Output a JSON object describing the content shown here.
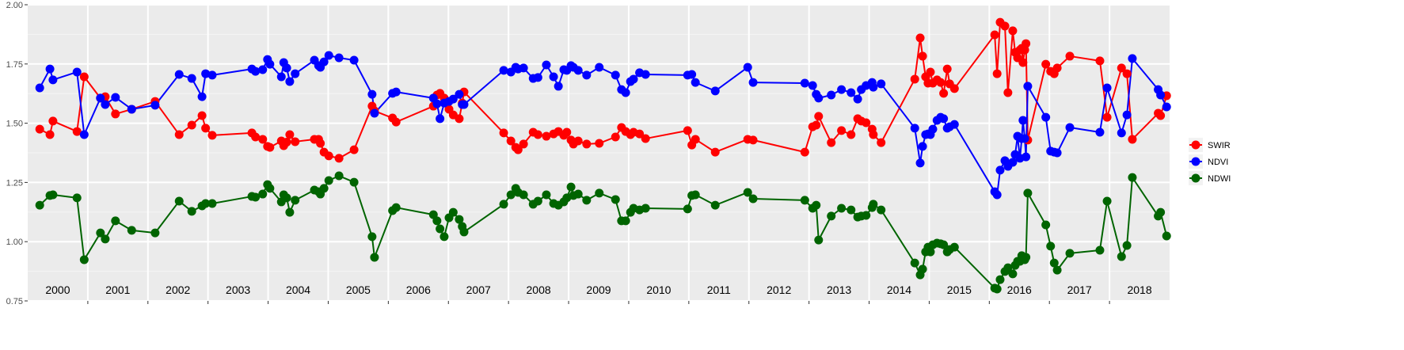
{
  "chart_data": {
    "type": "line",
    "xlim": [
      2000,
      2019
    ],
    "xticks": [
      2001,
      2002,
      2003,
      2004,
      2005,
      2006,
      2007,
      2008,
      2009,
      2010,
      2011,
      2012,
      2013,
      2014,
      2015,
      2016,
      2017,
      2018
    ],
    "ylim": [
      0.75,
      2.0
    ],
    "yticks": [
      {
        "value": 0.75,
        "label": "0.75"
      },
      {
        "value": 1.0,
        "label": "1.00"
      },
      {
        "value": 1.25,
        "label": "1.25"
      },
      {
        "value": 1.5,
        "label": "1.50"
      },
      {
        "value": 1.75,
        "label": "1.75"
      },
      {
        "value": 2.0,
        "label": "2.00"
      }
    ],
    "grid": true,
    "legend": "right",
    "annotations": [
      {
        "x": 2000.5,
        "text": "2000"
      },
      {
        "x": 2001.5,
        "text": "2001"
      },
      {
        "x": 2002.5,
        "text": "2002"
      },
      {
        "x": 2003.5,
        "text": "2003"
      },
      {
        "x": 2004.5,
        "text": "2004"
      },
      {
        "x": 2005.5,
        "text": "2005"
      },
      {
        "x": 2006.5,
        "text": "2006"
      },
      {
        "x": 2007.5,
        "text": "2007"
      },
      {
        "x": 2008.5,
        "text": "2008"
      },
      {
        "x": 2009.5,
        "text": "2009"
      },
      {
        "x": 2010.5,
        "text": "2010"
      },
      {
        "x": 2011.5,
        "text": "2011"
      },
      {
        "x": 2012.5,
        "text": "2012"
      },
      {
        "x": 2013.5,
        "text": "2013"
      },
      {
        "x": 2014.5,
        "text": "2014"
      },
      {
        "x": 2015.5,
        "text": "2015"
      },
      {
        "x": 2016.5,
        "text": "2016"
      },
      {
        "x": 2017.5,
        "text": "2017"
      },
      {
        "x": 2018.5,
        "text": "2018"
      }
    ],
    "x": [
      2000.2,
      2000.37,
      2000.42,
      2000.82,
      2000.94,
      2001.21,
      2001.29,
      2001.46,
      2001.73,
      2002.12,
      2002.52,
      2002.73,
      2002.9,
      2002.96,
      2003.07,
      2003.73,
      2003.79,
      2003.91,
      2003.99,
      2004.03,
      2004.22,
      2004.26,
      2004.31,
      2004.36,
      2004.45,
      2004.77,
      2004.84,
      2004.87,
      2004.93,
      2005.01,
      2005.18,
      2005.43,
      2005.73,
      2005.77,
      2006.07,
      2006.13,
      2006.75,
      2006.81,
      2006.86,
      2006.93,
      2007.01,
      2007.08,
      2007.18,
      2007.23,
      2007.26,
      2007.92,
      2008.04,
      2008.12,
      2008.16,
      2008.25,
      2008.41,
      2008.49,
      2008.63,
      2008.75,
      2008.83,
      2008.92,
      2008.97,
      2009.04,
      2009.08,
      2009.16,
      2009.3,
      2009.51,
      2009.78,
      2009.88,
      2009.95,
      2010.03,
      2010.08,
      2010.18,
      2010.28,
      2010.98,
      2011.05,
      2011.11,
      2011.44,
      2011.98,
      2012.07,
      2012.93,
      2013.06,
      2013.12,
      2013.16,
      2013.37,
      2013.54,
      2013.7,
      2013.81,
      2013.87,
      2013.95,
      2014.05,
      2014.07,
      2014.2,
      2014.76,
      2014.85,
      2014.89,
      2014.94,
      2014.98,
      2015.02,
      2015.06,
      2015.13,
      2015.19,
      2015.24,
      2015.3,
      2015.34,
      2015.42,
      2016.09,
      2016.13,
      2016.18,
      2016.26,
      2016.31,
      2016.39,
      2016.43,
      2016.47,
      2016.51,
      2016.54,
      2016.56,
      2016.59,
      2016.61,
      2016.64,
      2016.94,
      2017.02,
      2017.08,
      2017.13,
      2017.34,
      2017.84,
      2017.96,
      2018.2,
      2018.29,
      2018.38,
      2018.81,
      2018.85,
      2018.95
    ],
    "series": [
      {
        "name": "SWIR",
        "color": "#ff0000",
        "values": [
          1.475,
          1.452,
          1.509,
          1.465,
          1.696,
          1.606,
          1.612,
          1.539,
          1.559,
          1.592,
          1.452,
          1.492,
          1.532,
          1.479,
          1.449,
          1.459,
          1.442,
          1.432,
          1.402,
          1.398,
          1.425,
          1.405,
          1.42,
          1.452,
          1.422,
          1.432,
          1.432,
          1.415,
          1.378,
          1.362,
          1.352,
          1.388,
          1.572,
          1.552,
          1.522,
          1.505,
          1.572,
          1.619,
          1.626,
          1.606,
          1.559,
          1.535,
          1.519,
          1.585,
          1.632,
          1.459,
          1.425,
          1.398,
          1.388,
          1.412,
          1.462,
          1.452,
          1.445,
          1.455,
          1.465,
          1.449,
          1.462,
          1.429,
          1.412,
          1.425,
          1.412,
          1.415,
          1.442,
          1.482,
          1.465,
          1.452,
          1.462,
          1.455,
          1.435,
          1.469,
          1.408,
          1.432,
          1.378,
          1.432,
          1.429,
          1.378,
          1.485,
          1.492,
          1.529,
          1.418,
          1.469,
          1.452,
          1.519,
          1.509,
          1.502,
          1.475,
          1.452,
          1.418,
          1.686,
          1.86,
          1.783,
          1.696,
          1.669,
          1.716,
          1.669,
          1.683,
          1.672,
          1.626,
          1.729,
          1.666,
          1.646,
          1.873,
          1.709,
          1.926,
          1.91,
          1.629,
          1.89,
          1.799,
          1.776,
          1.809,
          1.816,
          1.756,
          1.809,
          1.836,
          1.429,
          1.749,
          1.719,
          1.709,
          1.733,
          1.783,
          1.763,
          1.525,
          1.733,
          1.709,
          1.432,
          1.542,
          1.532,
          1.616
        ]
      },
      {
        "name": "NDVI",
        "color": "#0000ff",
        "values": [
          1.649,
          1.729,
          1.683,
          1.716,
          1.452,
          1.606,
          1.579,
          1.609,
          1.559,
          1.576,
          1.706,
          1.689,
          1.612,
          1.709,
          1.703,
          1.729,
          1.719,
          1.726,
          1.769,
          1.749,
          1.696,
          1.756,
          1.733,
          1.676,
          1.709,
          1.766,
          1.743,
          1.736,
          1.759,
          1.786,
          1.776,
          1.766,
          1.622,
          1.542,
          1.626,
          1.632,
          1.606,
          1.582,
          1.519,
          1.585,
          1.592,
          1.602,
          1.622,
          1.579,
          1.579,
          1.723,
          1.716,
          1.736,
          1.729,
          1.733,
          1.689,
          1.693,
          1.746,
          1.696,
          1.656,
          1.726,
          1.723,
          1.743,
          1.736,
          1.723,
          1.703,
          1.736,
          1.703,
          1.642,
          1.629,
          1.676,
          1.686,
          1.713,
          1.706,
          1.703,
          1.706,
          1.672,
          1.636,
          1.736,
          1.672,
          1.669,
          1.659,
          1.622,
          1.606,
          1.619,
          1.642,
          1.629,
          1.602,
          1.642,
          1.659,
          1.672,
          1.652,
          1.666,
          1.479,
          1.332,
          1.402,
          1.452,
          1.455,
          1.452,
          1.475,
          1.512,
          1.525,
          1.519,
          1.479,
          1.485,
          1.495,
          1.211,
          1.198,
          1.302,
          1.342,
          1.318,
          1.335,
          1.368,
          1.445,
          1.352,
          1.435,
          1.512,
          1.435,
          1.358,
          1.656,
          1.525,
          1.382,
          1.378,
          1.375,
          1.482,
          1.462,
          1.649,
          1.459,
          1.535,
          1.773,
          1.642,
          1.619,
          1.569
        ]
      },
      {
        "name": "NDWI",
        "color": "#006400",
        "values": [
          1.154,
          1.195,
          1.198,
          1.185,
          0.924,
          1.037,
          1.011,
          1.088,
          1.048,
          1.037,
          1.171,
          1.128,
          1.151,
          1.161,
          1.161,
          1.191,
          1.188,
          1.201,
          1.241,
          1.225,
          1.168,
          1.198,
          1.185,
          1.124,
          1.175,
          1.218,
          1.211,
          1.201,
          1.225,
          1.258,
          1.278,
          1.251,
          1.021,
          0.934,
          1.131,
          1.144,
          1.114,
          1.088,
          1.054,
          1.021,
          1.101,
          1.124,
          1.094,
          1.064,
          1.041,
          1.158,
          1.198,
          1.225,
          1.208,
          1.198,
          1.158,
          1.171,
          1.198,
          1.161,
          1.154,
          1.168,
          1.185,
          1.231,
          1.195,
          1.201,
          1.175,
          1.205,
          1.178,
          1.088,
          1.088,
          1.124,
          1.141,
          1.134,
          1.141,
          1.138,
          1.195,
          1.198,
          1.154,
          1.208,
          1.181,
          1.175,
          1.141,
          1.154,
          1.007,
          1.108,
          1.141,
          1.134,
          1.104,
          1.108,
          1.111,
          1.144,
          1.158,
          1.134,
          0.91,
          0.86,
          0.884,
          0.957,
          0.977,
          0.957,
          0.987,
          0.994,
          0.991,
          0.987,
          0.957,
          0.967,
          0.977,
          0.804,
          0.8,
          0.84,
          0.874,
          0.89,
          0.864,
          0.9,
          0.917,
          0.917,
          0.941,
          0.931,
          0.924,
          0.934,
          1.205,
          1.071,
          0.981,
          0.91,
          0.88,
          0.951,
          0.964,
          1.171,
          0.937,
          0.984,
          1.271,
          1.108,
          1.124,
          1.024
        ]
      }
    ]
  }
}
